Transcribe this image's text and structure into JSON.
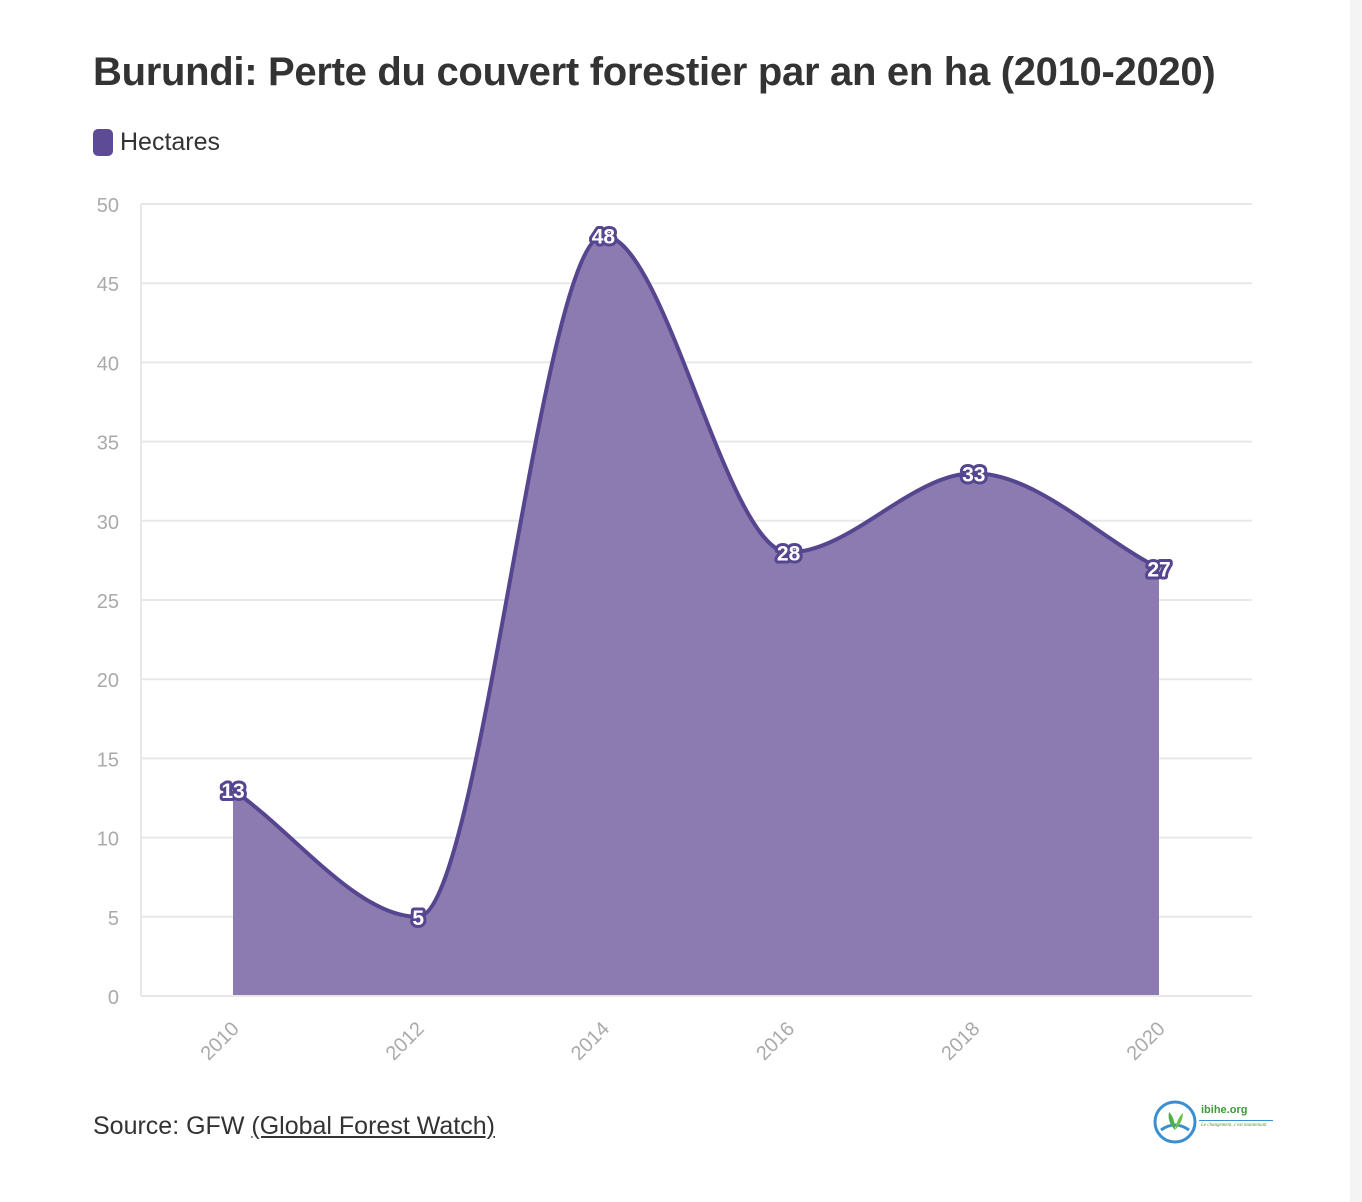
{
  "title": "Burundi: Perte du couvert forestier par an en ha (2010-2020)",
  "legend": {
    "label": "Hectares",
    "color": "#5e4b96"
  },
  "source": {
    "prefix": "Source: GFW ",
    "link": "(Global Forest Watch)"
  },
  "logo": {
    "name": "ibihe.org",
    "tagline": "Le changement, c'est maintenant",
    "icon": "leaf-globe-icon"
  },
  "colors": {
    "fill": "#8c7bb0",
    "line": "#56458f",
    "label_bg": "#56458f",
    "grid": "#e8e8ea",
    "tick": "#aaaaaa"
  },
  "chart_data": {
    "type": "area",
    "title": "Burundi: Perte du couvert forestier par an en ha (2010-2020)",
    "x": [
      "2010",
      "2012",
      "2014",
      "2016",
      "2018",
      "2020"
    ],
    "series": [
      {
        "name": "Hectares",
        "values": [
          13,
          5,
          48,
          28,
          33,
          27
        ]
      }
    ],
    "yticks": [
      0,
      5,
      10,
      15,
      20,
      25,
      30,
      35,
      40,
      45,
      50
    ],
    "ylim": [
      0,
      50
    ],
    "grid": true,
    "legend_position": "top-left",
    "curve": "smooth",
    "data_labels": true,
    "x_tick_rotation": "diagonal"
  }
}
